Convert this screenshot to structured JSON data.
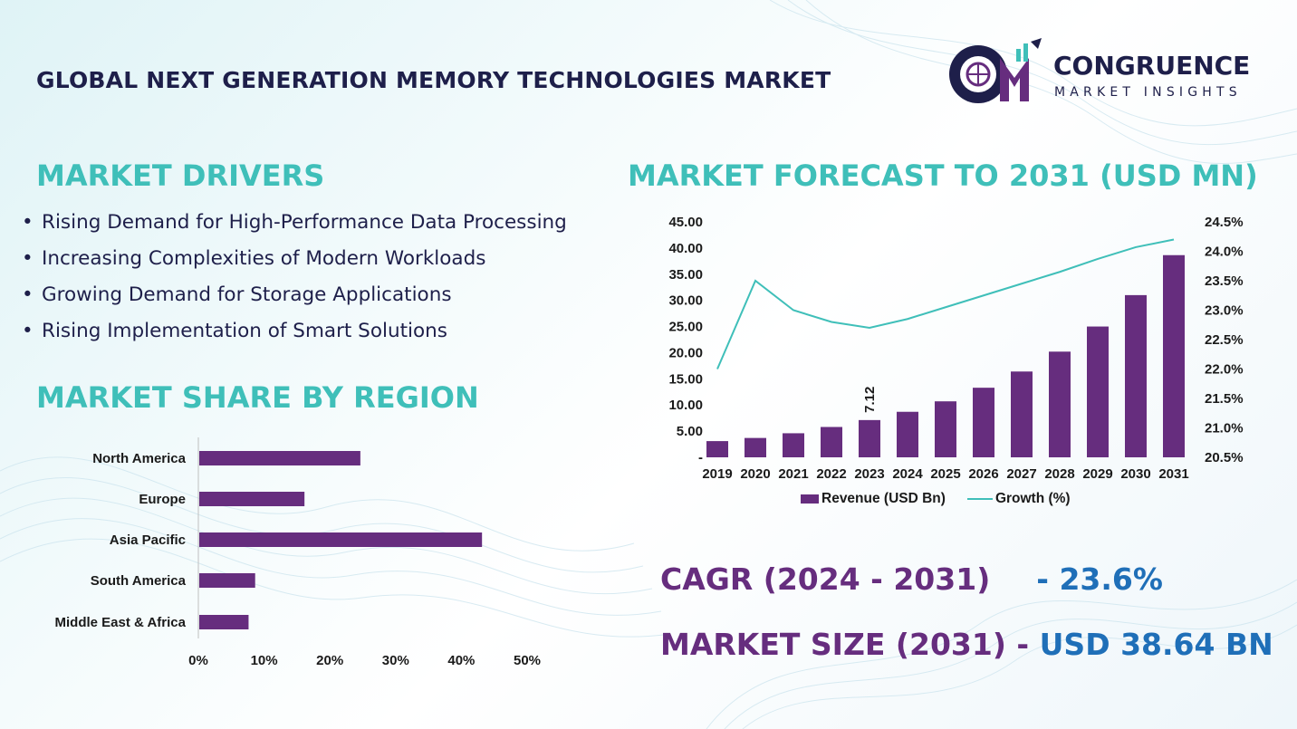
{
  "header": {
    "title": "GLOBAL NEXT GENERATION MEMORY TECHNOLOGIES MARKET",
    "logo": {
      "word1": "CONGRUENCE",
      "word2": "MARKET INSIGHTS"
    }
  },
  "drivers": {
    "heading": "MARKET DRIVERS",
    "items": [
      "Rising Demand for High-Performance Data Processing",
      "Increasing Complexities of Modern Workloads",
      "Growing Demand for Storage Applications",
      "Rising Implementation of Smart Solutions"
    ]
  },
  "region": {
    "heading": "MARKET SHARE BY REGION"
  },
  "forecast": {
    "heading": "MARKET FORECAST TO 2031 (USD MN)"
  },
  "kpis": {
    "cagr_label": "CAGR (2024 - 2031)",
    "cagr_value": "- 23.6%",
    "size_label": "MARKET SIZE (2031)",
    "size_sep": "-",
    "size_value": "USD 38.64 BN"
  },
  "colors": {
    "bar": "#662d7e",
    "line": "#3fbfb9",
    "heading": "#3fbfb9",
    "title": "#1e1f4a",
    "accent_value": "#1f6fb8"
  },
  "chart_data": [
    {
      "type": "bar",
      "categories": [
        "2019",
        "2020",
        "2021",
        "2022",
        "2023",
        "2024",
        "2025",
        "2026",
        "2027",
        "2028",
        "2029",
        "2030",
        "2031"
      ],
      "series": [
        {
          "name": "Revenue (USD Bn)",
          "type": "bar",
          "axis": "left",
          "values": [
            3.1,
            3.7,
            4.6,
            5.8,
            7.12,
            8.7,
            10.7,
            13.3,
            16.4,
            20.2,
            25.0,
            31.0,
            38.64
          ]
        },
        {
          "name": "Growth (%)",
          "type": "line",
          "axis": "right",
          "values": [
            22.0,
            23.5,
            23.0,
            22.8,
            22.7,
            22.85,
            23.05,
            23.25,
            23.45,
            23.65,
            23.87,
            24.07,
            24.2
          ]
        }
      ],
      "yticks_left": [
        "-",
        "5.00",
        "10.00",
        "15.00",
        "20.00",
        "25.00",
        "30.00",
        "35.00",
        "40.00",
        "45.00"
      ],
      "yticks_right": [
        "20.5%",
        "21.0%",
        "21.5%",
        "22.0%",
        "22.5%",
        "23.0%",
        "23.5%",
        "24.0%",
        "24.5%"
      ],
      "ylim": [
        0,
        45
      ],
      "ylim_right": [
        20.5,
        24.5
      ],
      "data_labels": [
        {
          "category": "2023",
          "text": "7.12"
        }
      ],
      "legend": [
        "Revenue (USD Bn)",
        "Growth (%)"
      ],
      "legend_position": "bottom",
      "grid": false
    },
    {
      "type": "bar",
      "orientation": "horizontal",
      "categories": [
        "North America",
        "Europe",
        "Asia Pacific",
        "South America",
        "Middle East & Africa"
      ],
      "values": [
        24.5,
        16,
        43,
        8.5,
        7.5
      ],
      "xticks": [
        "0%",
        "10%",
        "20%",
        "30%",
        "40%",
        "50%"
      ],
      "xlim": [
        0,
        50
      ],
      "grid": false
    }
  ]
}
